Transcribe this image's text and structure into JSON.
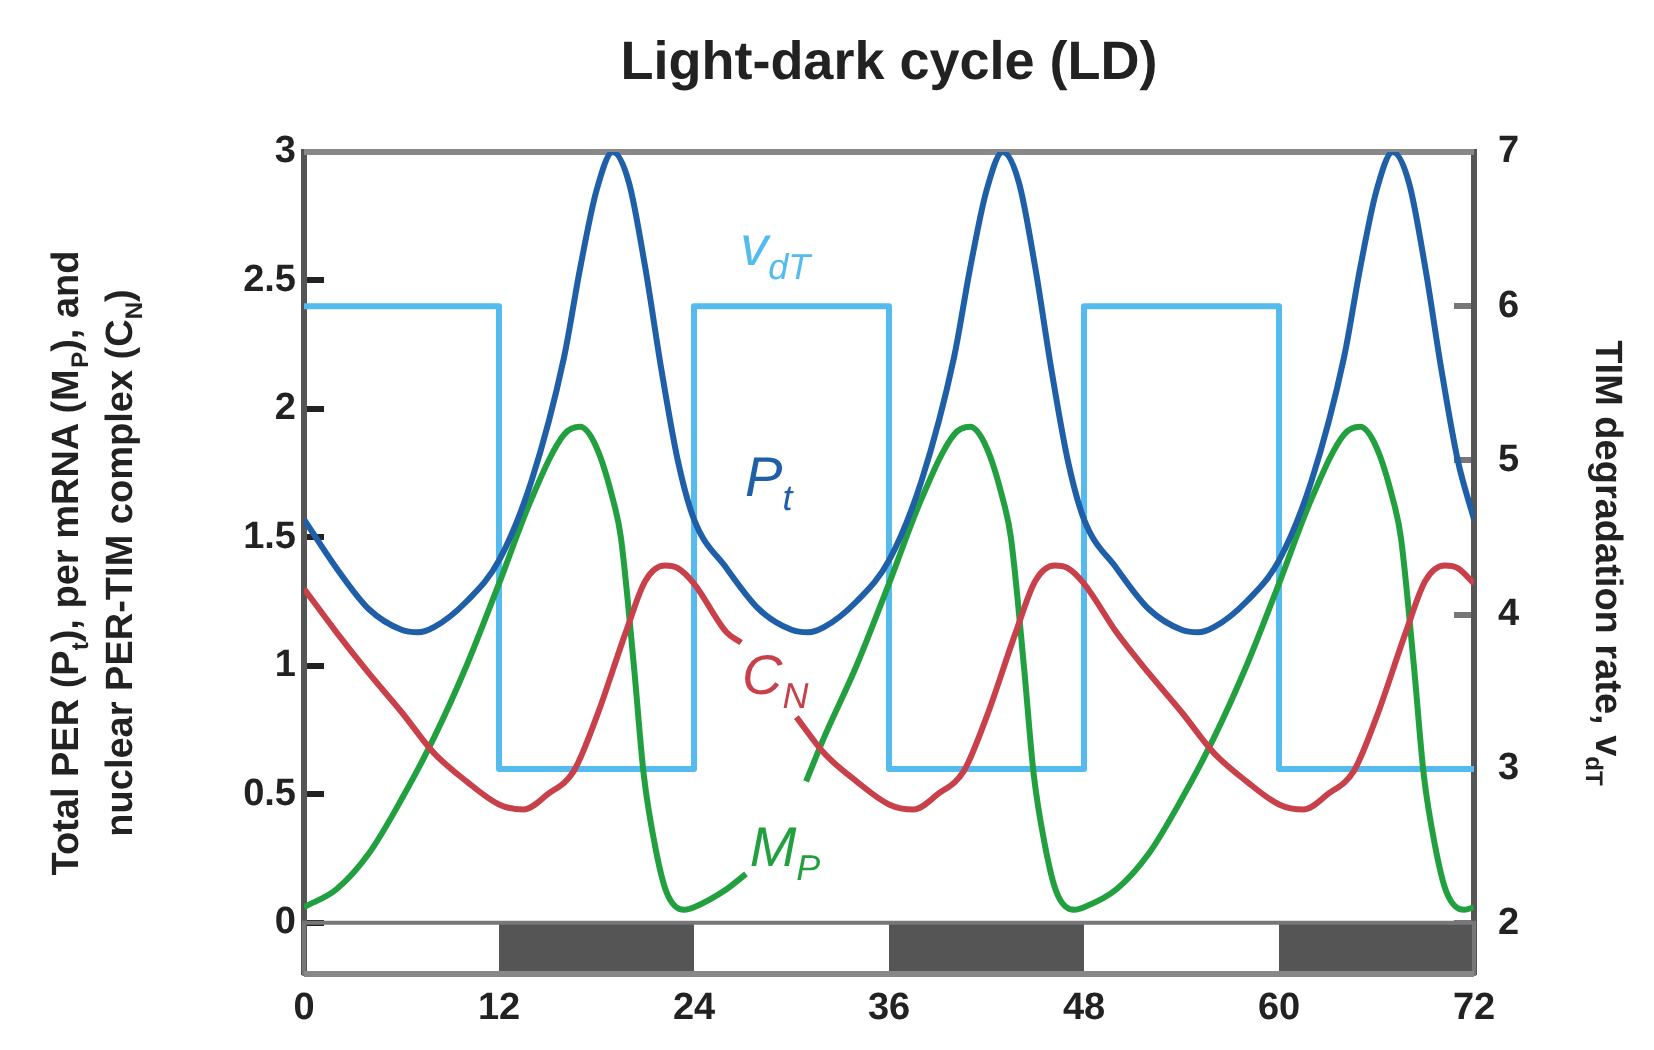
{
  "chart_data": {
    "type": "line",
    "title": "Light-dark cycle (LD)",
    "ylabel": "Total PER (P$_{t}$), per mRNA (M$_{P}$), and nuclear PER-TIM complex (C$_{N}$)",
    "y2label": "TIM degradation rate, v$_{dT}$",
    "xlim": [
      0,
      72
    ],
    "xticks": [
      0,
      12,
      24,
      36,
      48,
      60,
      72
    ],
    "ylim": [
      -0.2,
      3
    ],
    "yticks": [
      0,
      0.5,
      1,
      1.5,
      2,
      2.5,
      3
    ],
    "y2lim": [
      1.67,
      7
    ],
    "y2ticks": [
      2,
      3,
      4,
      5,
      6,
      7
    ],
    "grid": false,
    "legend": false,
    "marker": "none",
    "bands": [
      {
        "axis": "x",
        "from": 12,
        "to": 24,
        "color": "#555555"
      },
      {
        "axis": "x",
        "from": 36,
        "to": 48,
        "color": "#555555"
      },
      {
        "axis": "x",
        "from": 60,
        "to": 72,
        "color": "#555555"
      }
    ],
    "series": [
      {
        "name": "P$_{t}$",
        "color": "#1f5fa8",
        "x": [
          0,
          2,
          4,
          6,
          7,
          8,
          10,
          12,
          14,
          16,
          17,
          18,
          19,
          20,
          21,
          22,
          23,
          24,
          26,
          28,
          30,
          31,
          32,
          34,
          36,
          38,
          40,
          41,
          42,
          43,
          44,
          45,
          46,
          47,
          48,
          50,
          52,
          54,
          55,
          56,
          58,
          60,
          62,
          64,
          65,
          66,
          67,
          68,
          69,
          70,
          71,
          72
        ],
        "values": [
          1.57,
          1.38,
          1.22,
          1.14,
          1.13,
          1.15,
          1.25,
          1.41,
          1.72,
          2.2,
          2.55,
          2.85,
          3.0,
          2.88,
          2.55,
          2.15,
          1.8,
          1.57,
          1.38,
          1.22,
          1.14,
          1.13,
          1.15,
          1.25,
          1.41,
          1.72,
          2.2,
          2.55,
          2.85,
          3.0,
          2.88,
          2.55,
          2.15,
          1.8,
          1.57,
          1.38,
          1.22,
          1.14,
          1.13,
          1.15,
          1.25,
          1.41,
          1.72,
          2.2,
          2.55,
          2.85,
          3.0,
          2.88,
          2.55,
          2.15,
          1.8,
          1.57
        ]
      },
      {
        "name": "C$_{N}$",
        "color": "#c8404a",
        "x": [
          0,
          2,
          4,
          6,
          8,
          10,
          12,
          13.5,
          15,
          16.6,
          18,
          19.8,
          21,
          22.2,
          23,
          24,
          26,
          26.9,
          28.5,
          30.3,
          32,
          34,
          36,
          37.5,
          39,
          40.6,
          42,
          43.8,
          45,
          46.2,
          47,
          48,
          50,
          52,
          54,
          56,
          58,
          60,
          61.5,
          63,
          64.6,
          66,
          67.8,
          69,
          70.2,
          71,
          72
        ],
        "values": [
          1.3,
          1.13,
          0.97,
          0.82,
          0.66,
          0.55,
          0.46,
          0.44,
          0.5,
          0.59,
          0.8,
          1.13,
          1.33,
          1.39,
          1.38,
          1.32,
          1.13,
          1.09,
          null,
          0.8,
          0.66,
          0.55,
          0.46,
          0.44,
          0.5,
          0.59,
          0.8,
          1.13,
          1.33,
          1.39,
          1.38,
          1.32,
          1.13,
          0.97,
          0.82,
          0.66,
          0.55,
          0.46,
          0.44,
          0.5,
          0.59,
          0.8,
          1.13,
          1.33,
          1.39,
          1.38,
          1.32
        ]
      },
      {
        "name": "M$_{P}$",
        "color": "#22a040",
        "x": [
          0,
          2,
          4,
          6,
          8,
          10,
          12,
          14,
          16,
          17,
          18,
          19,
          19.5,
          20.3,
          20.9,
          21.6,
          22.3,
          23.4,
          24,
          26,
          27.2,
          29,
          30.9,
          32,
          34,
          36,
          38,
          40,
          41,
          42,
          43,
          43.5,
          44.3,
          44.9,
          45.6,
          46.3,
          47.4,
          48,
          50,
          52,
          54,
          56,
          58,
          60,
          62,
          64,
          65,
          66,
          67,
          67.5,
          68.3,
          68.9,
          69.6,
          70.3,
          71.4,
          72
        ],
        "values": [
          0.06,
          0.13,
          0.27,
          0.48,
          0.72,
          1.0,
          1.32,
          1.65,
          1.9,
          1.93,
          1.85,
          1.65,
          1.5,
          1.0,
          0.58,
          0.3,
          0.12,
          0.05,
          0.06,
          0.13,
          0.19,
          null,
          0.55,
          0.72,
          1.0,
          1.32,
          1.65,
          1.9,
          1.93,
          1.85,
          1.65,
          1.5,
          1.0,
          0.58,
          0.3,
          0.12,
          0.05,
          0.06,
          0.13,
          0.27,
          0.48,
          0.72,
          1.0,
          1.32,
          1.65,
          1.9,
          1.93,
          1.85,
          1.65,
          1.5,
          1.0,
          0.58,
          0.3,
          0.12,
          0.05,
          0.06
        ]
      },
      {
        "name": "v$_{dT}$",
        "type": "step",
        "axis": "y2",
        "color": "#55bbee",
        "x": [
          0,
          12,
          24,
          36,
          48,
          60,
          72
        ],
        "values": [
          6,
          3,
          6,
          3,
          6,
          3,
          3
        ]
      }
    ]
  }
}
